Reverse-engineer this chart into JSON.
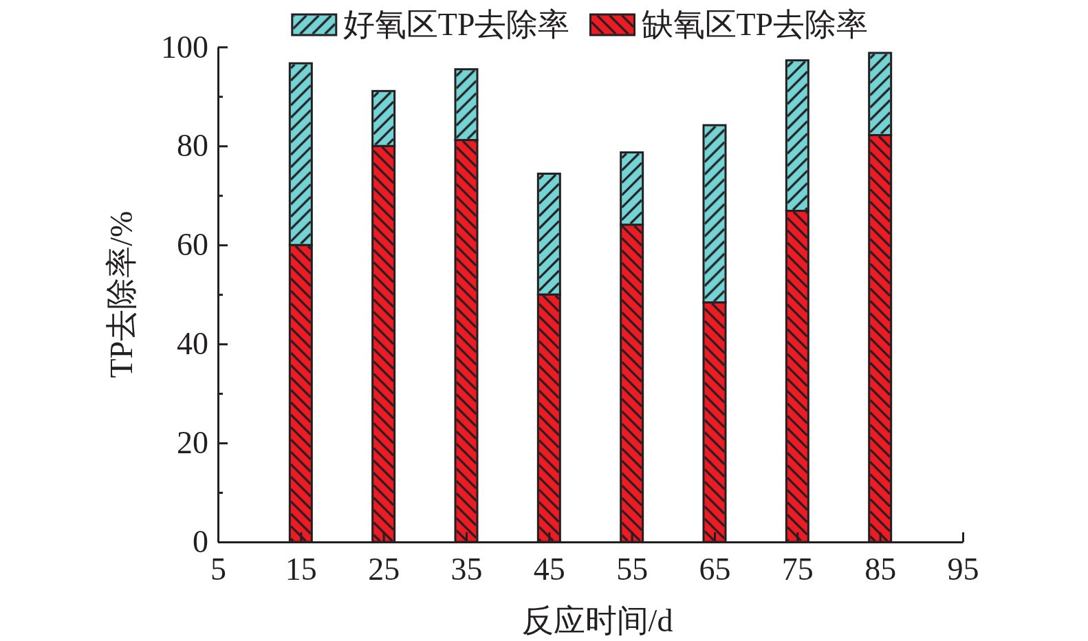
{
  "chart_data": {
    "type": "bar",
    "stacked": true,
    "xlabel": "反应时间/d",
    "ylabel": "TP去除率/%",
    "x": [
      15,
      25,
      35,
      45,
      55,
      65,
      75,
      85
    ],
    "series": [
      {
        "name": "缺氧区TP去除率",
        "color": "#ed1c24",
        "values": [
          60,
          80,
          81.2,
          50,
          64.1,
          48.4,
          66.9,
          82.2
        ]
      },
      {
        "name": "好氧区TP去除率",
        "color": "#74d3d4",
        "values": [
          36.7,
          11.1,
          14.3,
          24.4,
          14.6,
          35.8,
          30.4,
          16.6
        ]
      }
    ],
    "xlim": [
      5,
      95
    ],
    "xticks": [
      5,
      15,
      25,
      35,
      45,
      55,
      65,
      75,
      85,
      95
    ],
    "ylim": [
      0,
      100
    ],
    "yticks": [
      0,
      {
        "value": 10,
        "label": null
      },
      20,
      {
        "value": 30,
        "label": null
      },
      40,
      {
        "value": 50,
        "label": null
      },
      60,
      {
        "value": 70,
        "label": null
      },
      80,
      {
        "value": 90,
        "label": null
      },
      100
    ],
    "legend": "top"
  }
}
